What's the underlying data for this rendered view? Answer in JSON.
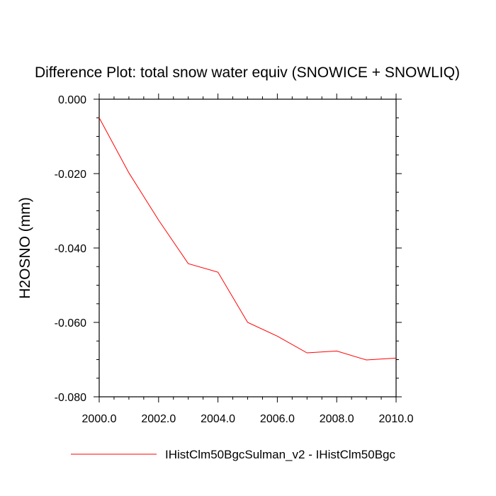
{
  "chart_data": {
    "type": "line",
    "title": "Difference Plot: total snow water equiv (SNOWICE + SNOWLIQ)",
    "xlabel": "",
    "ylabel": "H2OSNO  (mm)",
    "xlim": [
      2000.0,
      2010.0
    ],
    "ylim": [
      -0.08,
      0.0
    ],
    "x_ticks": [
      "2000.0",
      "2002.0",
      "2004.0",
      "2006.0",
      "2008.0",
      "2010.0"
    ],
    "y_ticks": [
      "0.000",
      "-0.020",
      "-0.040",
      "-0.060",
      "-0.080"
    ],
    "grid": false,
    "legend_position": "bottom",
    "series": [
      {
        "name": "IHistClm50BgcSulman_v2 - IHistClm50Bgc",
        "color": "#ff0000",
        "x": [
          2000,
          2001,
          2002,
          2003,
          2004,
          2005,
          2006,
          2007,
          2008,
          2009,
          2010
        ],
        "y": [
          -0.005,
          -0.0198,
          -0.0325,
          -0.0442,
          -0.0465,
          -0.06,
          -0.0637,
          -0.0682,
          -0.0677,
          -0.0701,
          -0.0696
        ]
      }
    ]
  }
}
